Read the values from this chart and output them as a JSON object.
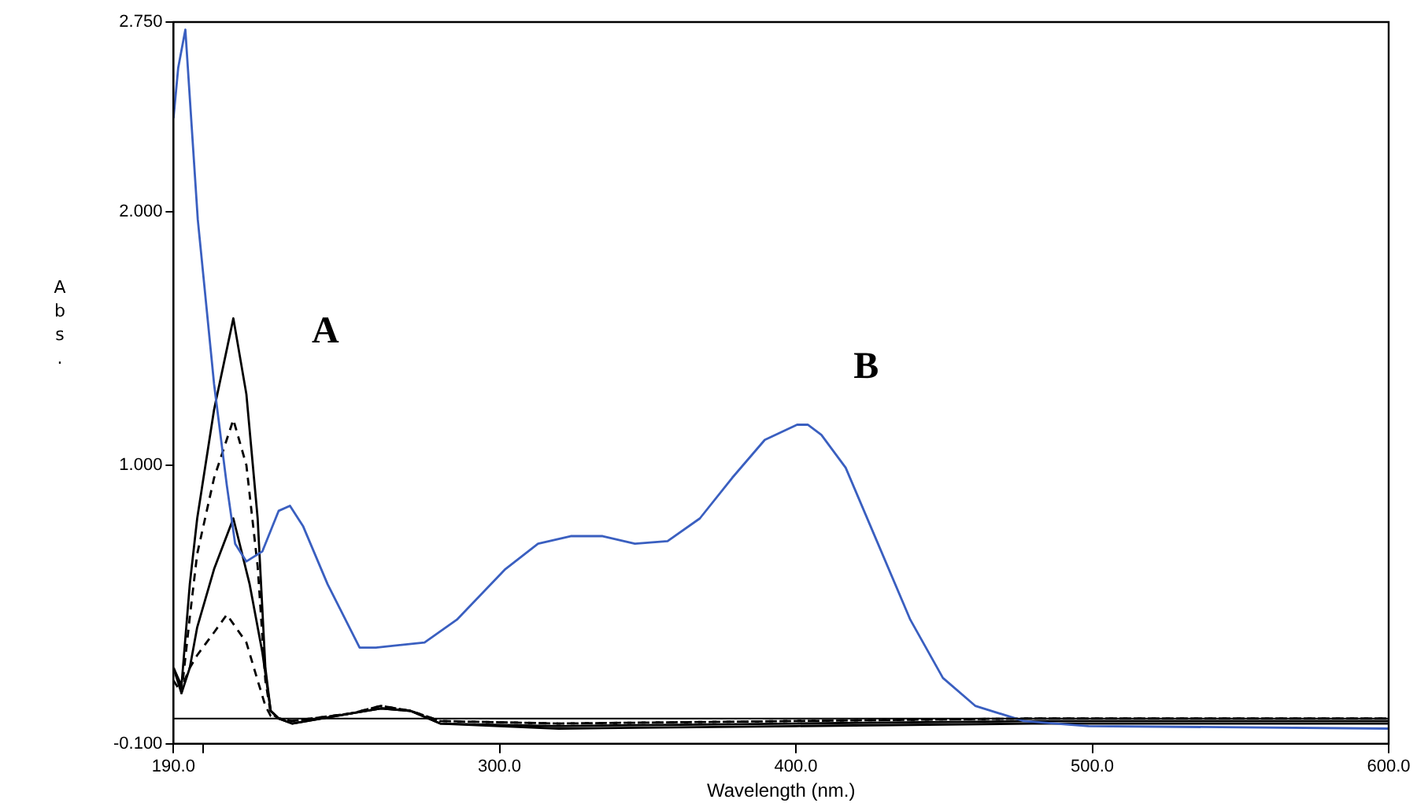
{
  "chart_data": {
    "type": "line",
    "xlabel": "Wavelength (nm.)",
    "ylabel": "Abs.",
    "xlim": [
      190,
      600
    ],
    "ylim": [
      -0.1,
      2.75
    ],
    "xticks": [
      {
        "value": 190,
        "label": "190.0"
      },
      {
        "value": 200,
        "label": null
      },
      {
        "value": 300,
        "label": "300.0"
      },
      {
        "value": 400,
        "label": "400.0"
      },
      {
        "value": 500,
        "label": "500.0"
      },
      {
        "value": 600,
        "label": "600.0"
      }
    ],
    "yticks": [
      {
        "value": -0.1,
        "label": "-0.100"
      },
      {
        "value": 1,
        "label": "1.000"
      },
      {
        "value": 2,
        "label": "2.000"
      },
      {
        "value": 2.75,
        "label": "2.750"
      }
    ],
    "grid": false,
    "legend": false,
    "marker": "none",
    "ref_lines": [
      {
        "axis": "y",
        "value": 0,
        "label": null,
        "color": "#000000"
      }
    ],
    "annotations": [
      "A",
      "B"
    ],
    "series": [
      {
        "color": "#3a5fc0",
        "line_style": "solid",
        "x": [
          190,
          191.6,
          194,
          198.2,
          203.7,
          208,
          210.8,
          214.6,
          220,
          225.5,
          229.3,
          233.7,
          242,
          252.8,
          258.3,
          274.7,
          285.6,
          302,
          313,
          324,
          334.8,
          345.7,
          356.7,
          367.6,
          378.5,
          389.5,
          400.4,
          404,
          408.6,
          416.8,
          427.7,
          438.6,
          449.6,
          460.5,
          476.9,
          498.7,
          600
        ],
        "values": [
          2.37,
          2.57,
          2.72,
          1.97,
          1.32,
          0.92,
          0.69,
          0.62,
          0.66,
          0.82,
          0.84,
          0.76,
          0.53,
          0.28,
          0.28,
          0.3,
          0.39,
          0.59,
          0.69,
          0.72,
          0.72,
          0.69,
          0.7,
          0.79,
          0.95,
          1.1,
          1.16,
          1.16,
          1.12,
          0.99,
          0.69,
          0.39,
          0.16,
          0.05,
          -0.01,
          -0.03,
          -0.04
        ]
      },
      {
        "color": "#000000",
        "line_style": "solid",
        "x": [
          190,
          192.7,
          195.5,
          198,
          203.7,
          210.2,
          214.6,
          218.4,
          221,
          222.8,
          225.5,
          230,
          250,
          260,
          270,
          280,
          320,
          400,
          480,
          600
        ],
        "values": [
          0.2,
          0.13,
          0.53,
          0.79,
          1.22,
          1.58,
          1.28,
          0.79,
          0.2,
          0.03,
          0,
          -0.02,
          0.02,
          0.04,
          0.03,
          -0.02,
          -0.03,
          -0.02,
          -0.01,
          -0.01
        ]
      },
      {
        "color": "#000000",
        "line_style": "solid",
        "x": [
          190,
          192.7,
          195.5,
          198,
          203.7,
          210.2,
          215.7,
          220,
          222.8,
          225.5,
          230,
          250,
          260,
          270,
          280,
          320,
          400,
          480,
          600
        ],
        "values": [
          0.2,
          0.1,
          0.2,
          0.36,
          0.59,
          0.79,
          0.53,
          0.26,
          0.03,
          0,
          -0.02,
          0.02,
          0.04,
          0.03,
          -0.02,
          -0.04,
          -0.03,
          -0.02,
          -0.02
        ]
      },
      {
        "color": "#000000",
        "line_style": "dashed",
        "x": [
          190,
          192.7,
          195.5,
          198,
          203.7,
          210.2,
          214.6,
          218.4,
          221,
          222.8,
          225.5,
          230,
          250,
          260,
          270,
          280,
          320,
          400,
          480,
          600
        ],
        "values": [
          0.15,
          0.1,
          0.4,
          0.65,
          0.95,
          1.18,
          1.0,
          0.6,
          0.15,
          0.02,
          0,
          -0.01,
          0.02,
          0.05,
          0.03,
          -0.01,
          -0.02,
          -0.01,
          0,
          0
        ]
      },
      {
        "color": "#000000",
        "line_style": "dashed",
        "x": [
          190,
          192.7,
          195.5,
          198,
          203.7,
          208,
          214.6,
          218.4,
          221,
          222.8,
          225.5,
          230,
          250,
          260,
          270,
          280,
          320,
          400,
          480,
          600
        ],
        "values": [
          0.2,
          0.12,
          0.2,
          0.25,
          0.34,
          0.41,
          0.3,
          0.15,
          0.05,
          0.01,
          0,
          -0.01,
          0.02,
          0.05,
          0.03,
          -0.01,
          -0.02,
          -0.01,
          0,
          0
        ]
      }
    ]
  }
}
